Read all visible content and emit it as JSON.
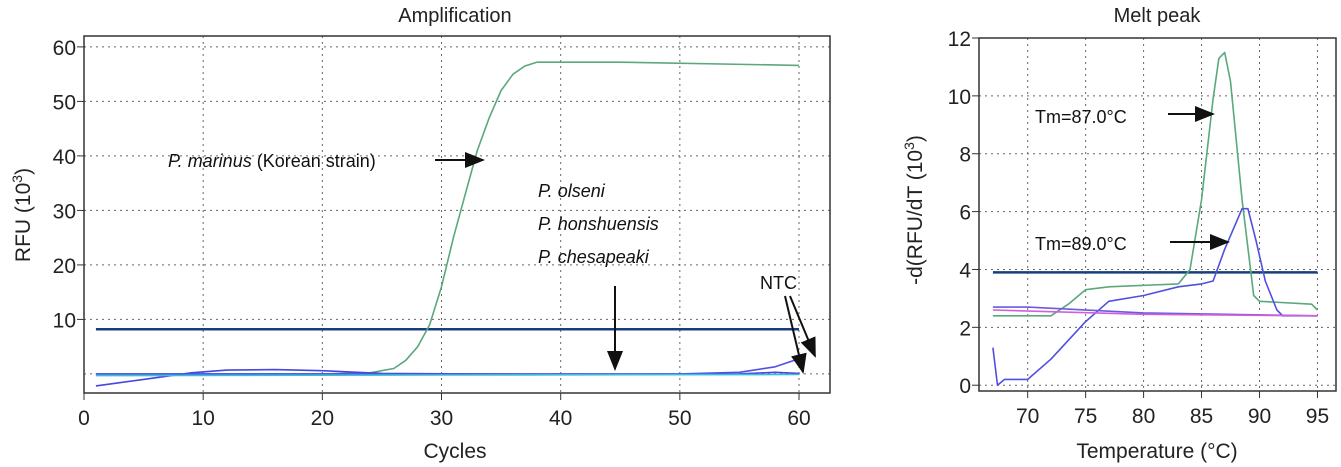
{
  "chart_data": [
    {
      "type": "line",
      "title": "Amplification",
      "xlabel": "Cycles",
      "ylabel": "RFU (10",
      "ylabel_sup": "3",
      "ylabel_end": ")",
      "xlim": [
        0,
        62.6
      ],
      "ylim": [
        -3.5,
        62
      ],
      "xticks": [
        0,
        10,
        20,
        30,
        40,
        50,
        60
      ],
      "yticks": [
        10,
        20,
        30,
        40,
        50,
        60
      ],
      "grid": true,
      "threshold": 8.2,
      "colors": {
        "green": "#5aa87c",
        "blue": "#4646e0",
        "cyan": "#38c0d8",
        "threshold": "#173f7a"
      },
      "series": [
        {
          "color": "#5aa87c",
          "points": [
            [
              1,
              0
            ],
            [
              10,
              0
            ],
            [
              20,
              0
            ],
            [
              24,
              0.2
            ],
            [
              26,
              1
            ],
            [
              27,
              2.5
            ],
            [
              28,
              5
            ],
            [
              29,
              9
            ],
            [
              30,
              16
            ],
            [
              31,
              25
            ],
            [
              32,
              33
            ],
            [
              33,
              41
            ],
            [
              34,
              47
            ],
            [
              35,
              52
            ],
            [
              36,
              55
            ],
            [
              37,
              56.5
            ],
            [
              38,
              57.2
            ],
            [
              45,
              57.2
            ],
            [
              60,
              56.6
            ]
          ]
        },
        {
          "color": "#4646e0",
          "points": [
            [
              1,
              -2.2
            ],
            [
              5,
              -1
            ],
            [
              9,
              0.2
            ],
            [
              12,
              0.7
            ],
            [
              16,
              0.8
            ],
            [
              20,
              0.6
            ],
            [
              25,
              0.1
            ],
            [
              40,
              -0.1
            ],
            [
              55,
              0
            ],
            [
              58,
              0.3
            ],
            [
              60,
              0.1
            ]
          ]
        },
        {
          "color": "#5050e8",
          "points": [
            [
              1,
              0
            ],
            [
              30,
              0
            ],
            [
              50,
              0
            ],
            [
              55,
              0.3
            ],
            [
              58,
              1.3
            ],
            [
              60,
              2.8
            ]
          ]
        },
        {
          "color": "#38c0d8",
          "points": [
            [
              1,
              -0.3
            ],
            [
              30,
              -0.2
            ],
            [
              60,
              -0.1
            ]
          ]
        }
      ],
      "annotations": {
        "marinus_italic": "P. marinus",
        "marinus_rest": " (Korean strain)",
        "olseni": "P. olseni",
        "honshuensis": "P. honshuensis",
        "chesapeaki": "P. chesapeaki",
        "ntc": "NTC"
      }
    },
    {
      "type": "line",
      "title": "Melt peak",
      "xlabel": "Temperature (°C)",
      "ylabel": "-d(RFU/dT (10",
      "ylabel_sup": "3",
      "ylabel_end": ")",
      "xlim": [
        65.8,
        96.6
      ],
      "ylim": [
        -0.2,
        12
      ],
      "xticks": [
        70,
        75,
        80,
        85,
        90,
        95
      ],
      "yticks": [
        0,
        2,
        4,
        6,
        8,
        10,
        12
      ],
      "grid": true,
      "threshold": 3.9,
      "series": [
        {
          "color": "#5aa87c",
          "points": [
            [
              67,
              2.4
            ],
            [
              72,
              2.4
            ],
            [
              73.5,
              2.8
            ],
            [
              75,
              3.3
            ],
            [
              77,
              3.4
            ],
            [
              83,
              3.5
            ],
            [
              84,
              4.0
            ],
            [
              85,
              6.4
            ],
            [
              86,
              9.9
            ],
            [
              86.5,
              11.3
            ],
            [
              87,
              11.5
            ],
            [
              87.5,
              10.5
            ],
            [
              88.5,
              6.4
            ],
            [
              89.5,
              3.1
            ],
            [
              90,
              2.9
            ],
            [
              94.5,
              2.8
            ],
            [
              95,
              2.6
            ]
          ]
        },
        {
          "color": "#5050e0",
          "points": [
            [
              67,
              1.3
            ],
            [
              67.4,
              0
            ],
            [
              68,
              0.2
            ],
            [
              70,
              0.2
            ],
            [
              72,
              0.9
            ],
            [
              75,
              2.2
            ],
            [
              77,
              2.9
            ],
            [
              80,
              3.1
            ],
            [
              83,
              3.4
            ],
            [
              85,
              3.5
            ],
            [
              86,
              3.6
            ],
            [
              87,
              4.7
            ],
            [
              88.5,
              6.1
            ],
            [
              89,
              6.1
            ],
            [
              89.7,
              5.0
            ],
            [
              90.5,
              3.6
            ],
            [
              91.5,
              2.6
            ],
            [
              92,
              2.4
            ],
            [
              95,
              2.4
            ]
          ]
        },
        {
          "color": "#6a5ae8",
          "points": [
            [
              67,
              2.7
            ],
            [
              70,
              2.7
            ],
            [
              80,
              2.5
            ],
            [
              95,
              2.4
            ]
          ]
        },
        {
          "color": "#d060d8",
          "points": [
            [
              67,
              2.6
            ],
            [
              80,
              2.45
            ],
            [
              95,
              2.4
            ]
          ]
        }
      ],
      "annotations": {
        "tm1": "Tm=87.0°C",
        "tm2": "Tm=89.0°C"
      }
    }
  ]
}
